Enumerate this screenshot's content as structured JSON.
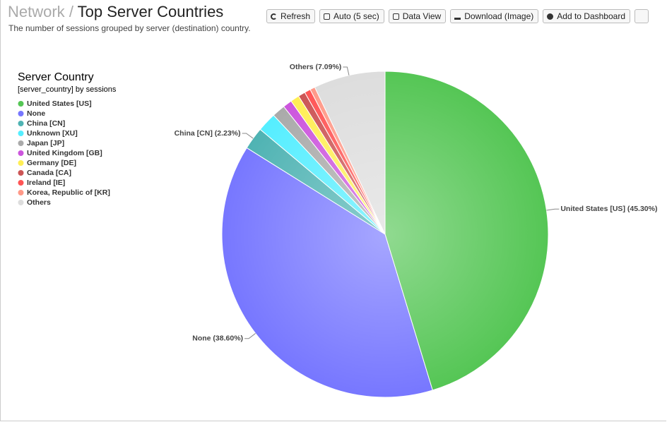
{
  "header": {
    "section": "Network",
    "separator": "/",
    "title": "Top Server Countries",
    "subtitle": "The number of sessions grouped by server (destination) country."
  },
  "toolbar": {
    "buttons": [
      "Refresh",
      "Auto (5 sec)",
      "Data View",
      "Download (Image)",
      "Add to Dashboard"
    ]
  },
  "chart_data": {
    "type": "pie",
    "legend_title": "Server Country",
    "legend_subtitle": "[server_country] by sessions",
    "categories": [
      "United States [US]",
      "None",
      "China [CN]",
      "Unknown [XU]",
      "Japan [JP]",
      "United Kingdom [GB]",
      "Germany [DE]",
      "Canada [CA]",
      "Ireland [IE]",
      "Korea, Republic of [KR]",
      "Others"
    ],
    "values": [
      45.3,
      38.6,
      2.23,
      1.9,
      1.3,
      0.9,
      0.88,
      0.7,
      0.6,
      0.5,
      7.09
    ],
    "value_labels": [
      "United States [US] (45.30%)",
      "None (38.60%)",
      "China [CN] (2.23%)",
      null,
      null,
      null,
      null,
      null,
      null,
      null,
      "Others (7.09%)"
    ],
    "colors": [
      "#55c655",
      "#7777ff",
      "#4fb3b3",
      "#55eeff",
      "#aaaaaa",
      "#cc55dd",
      "#ffee55",
      "#cc5555",
      "#ff5555",
      "#ff9988",
      "#dddddd"
    ],
    "legend": "left"
  }
}
